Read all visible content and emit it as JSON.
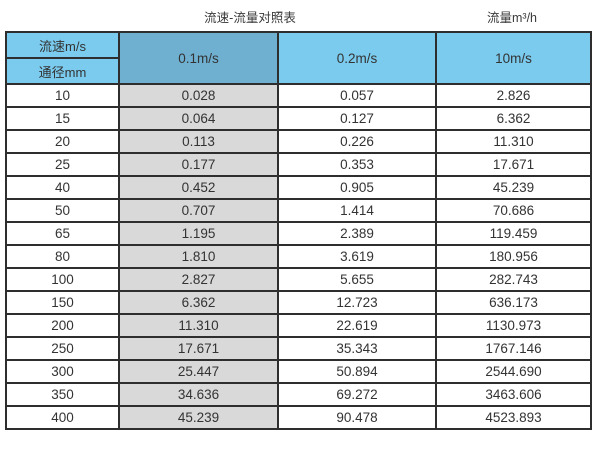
{
  "page": {
    "title": "流速-流量对照表",
    "flow_unit_label": "流量m³/h"
  },
  "table": {
    "corner": {
      "top": "流速m/s",
      "bottom": "通径mm"
    },
    "columns": [
      "0.1m/s",
      "0.2m/s",
      "10m/s"
    ],
    "rows": [
      {
        "diameter": "10",
        "values": [
          "0.028",
          "0.057",
          "2.826"
        ]
      },
      {
        "diameter": "15",
        "values": [
          "0.064",
          "0.127",
          "6.362"
        ]
      },
      {
        "diameter": "20",
        "values": [
          "0.113",
          "0.226",
          "11.310"
        ]
      },
      {
        "diameter": "25",
        "values": [
          "0.177",
          "0.353",
          "17.671"
        ]
      },
      {
        "diameter": "40",
        "values": [
          "0.452",
          "0.905",
          "45.239"
        ]
      },
      {
        "diameter": "50",
        "values": [
          "0.707",
          "1.414",
          "70.686"
        ]
      },
      {
        "diameter": "65",
        "values": [
          "1.195",
          "2.389",
          "119.459"
        ]
      },
      {
        "diameter": "80",
        "values": [
          "1.810",
          "3.619",
          "180.956"
        ]
      },
      {
        "diameter": "100",
        "values": [
          "2.827",
          "5.655",
          "282.743"
        ]
      },
      {
        "diameter": "150",
        "values": [
          "6.362",
          "12.723",
          "636.173"
        ]
      },
      {
        "diameter": "200",
        "values": [
          "11.310",
          "22.619",
          "1130.973"
        ]
      },
      {
        "diameter": "250",
        "values": [
          "17.671",
          "35.343",
          "1767.146"
        ]
      },
      {
        "diameter": "300",
        "values": [
          "25.447",
          "50.894",
          "2544.690"
        ]
      },
      {
        "diameter": "350",
        "values": [
          "34.636",
          "69.272",
          "3463.606"
        ]
      },
      {
        "diameter": "400",
        "values": [
          "45.239",
          "90.478",
          "4523.893"
        ]
      }
    ]
  },
  "colors": {
    "header_blue": "#7ACBEE",
    "header_muted_blue": "#6FB0D1",
    "gray_column": "#D9D9D9",
    "border": "#2E2E2E",
    "text": "#333333"
  },
  "chart_data": {
    "type": "table",
    "title": "流速-流量对照表",
    "unit_label": "流量m³/h",
    "row_axis_label": "通径mm",
    "col_axis_label": "流速m/s",
    "columns": [
      "0.1m/s",
      "0.2m/s",
      "10m/s"
    ],
    "diameters_mm": [
      10,
      15,
      20,
      25,
      40,
      50,
      65,
      80,
      100,
      150,
      200,
      250,
      300,
      350,
      400
    ],
    "values_m3_per_h": [
      [
        0.028,
        0.057,
        2.826
      ],
      [
        0.064,
        0.127,
        6.362
      ],
      [
        0.113,
        0.226,
        11.31
      ],
      [
        0.177,
        0.353,
        17.671
      ],
      [
        0.452,
        0.905,
        45.239
      ],
      [
        0.707,
        1.414,
        70.686
      ],
      [
        1.195,
        2.389,
        119.459
      ],
      [
        1.81,
        3.619,
        180.956
      ],
      [
        2.827,
        5.655,
        282.743
      ],
      [
        6.362,
        12.723,
        636.173
      ],
      [
        11.31,
        22.619,
        1130.973
      ],
      [
        17.671,
        35.343,
        1767.146
      ],
      [
        25.447,
        50.894,
        2544.69
      ],
      [
        34.636,
        69.272,
        3463.606
      ],
      [
        45.239,
        90.478,
        4523.893
      ]
    ]
  }
}
